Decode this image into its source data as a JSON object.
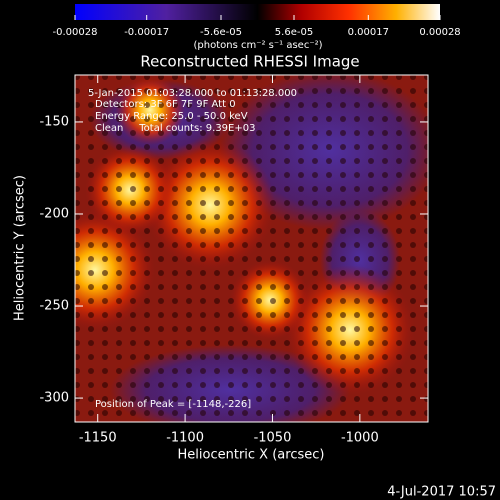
{
  "chart_data": {
    "type": "image",
    "title": "Reconstructed RHESSI Image",
    "colorbar_label": "(photons cm⁻² s⁻¹ asec⁻²)",
    "zlim": [
      -0.00028,
      0.00028
    ],
    "zticks": [
      -0.00028,
      -0.00017,
      {
        "value": -5.6e-05,
        "label": "-5.6e-05"
      },
      {
        "value": 5.6e-05,
        "label": "5.6e-05"
      },
      0.00017,
      0.00028
    ],
    "x_label": "Heliocentric X (arcsec)",
    "y_label": "Heliocentric Y (arcsec)",
    "xlim": [
      -1163,
      -961
    ],
    "xticks": [
      -1150,
      -1100,
      -1050,
      -1000
    ],
    "ylim": [
      -313,
      -124.5
    ],
    "yticks": [
      -150,
      -200,
      -250,
      -300
    ],
    "annotations": [
      "5-Jan-2015 01:03:28.000 to 01:13:28.000",
      "Detectors: 3F 6F 7F 9F Att 0",
      "Energy Range: 25.0 - 50.0 keV",
      "Clean     Total counts: 9.39E+03"
    ],
    "peak_label": "Position of Peak = [-1148,-226]",
    "timestamp": "4-Jul-2017 10:57"
  }
}
